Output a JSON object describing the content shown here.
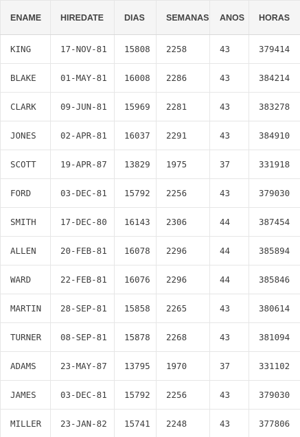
{
  "table": {
    "columns": [
      "ENAME",
      "HIREDATE",
      "DIAS",
      "SEMANAS",
      "ANOS",
      "HORAS"
    ],
    "rows": [
      [
        "KING",
        "17-NOV-81",
        "15808",
        "2258",
        "43",
        "379414"
      ],
      [
        "BLAKE",
        "01-MAY-81",
        "16008",
        "2286",
        "43",
        "384214"
      ],
      [
        "CLARK",
        "09-JUN-81",
        "15969",
        "2281",
        "43",
        "383278"
      ],
      [
        "JONES",
        "02-APR-81",
        "16037",
        "2291",
        "43",
        "384910"
      ],
      [
        "SCOTT",
        "19-APR-87",
        "13829",
        "1975",
        "37",
        "331918"
      ],
      [
        "FORD",
        "03-DEC-81",
        "15792",
        "2256",
        "43",
        "379030"
      ],
      [
        "SMITH",
        "17-DEC-80",
        "16143",
        "2306",
        "44",
        "387454"
      ],
      [
        "ALLEN",
        "20-FEB-81",
        "16078",
        "2296",
        "44",
        "385894"
      ],
      [
        "WARD",
        "22-FEB-81",
        "16076",
        "2296",
        "44",
        "385846"
      ],
      [
        "MARTIN",
        "28-SEP-81",
        "15858",
        "2265",
        "43",
        "380614"
      ],
      [
        "TURNER",
        "08-SEP-81",
        "15878",
        "2268",
        "43",
        "381094"
      ],
      [
        "ADAMS",
        "23-MAY-87",
        "13795",
        "1970",
        "37",
        "331102"
      ],
      [
        "JAMES",
        "03-DEC-81",
        "15792",
        "2256",
        "43",
        "379030"
      ],
      [
        "MILLER",
        "23-JAN-82",
        "15741",
        "2248",
        "43",
        "377806"
      ]
    ]
  }
}
